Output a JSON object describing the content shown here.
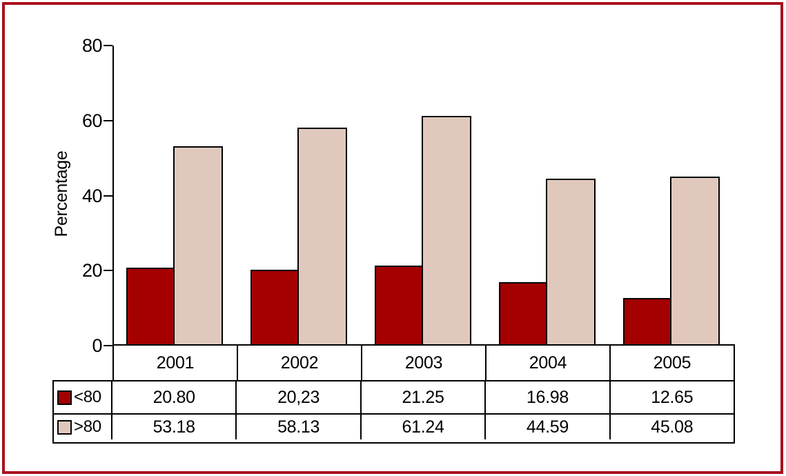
{
  "figure": {
    "border_color": "#A8101E",
    "background": "#FFFFFF"
  },
  "chart_data": {
    "type": "bar",
    "title": "",
    "xlabel": "",
    "ylabel": "Percentage",
    "ylim": [
      0,
      80
    ],
    "yticks": [
      0,
      20,
      40,
      60,
      80
    ],
    "grid": false,
    "legend_position": "table-rows-left",
    "categories": [
      "2001",
      "2002",
      "2003",
      "2004",
      "2005"
    ],
    "series": [
      {
        "name": "<80",
        "color": "#A40000",
        "values": [
          20.8,
          20.23,
          21.25,
          16.98,
          12.65
        ],
        "values_display": [
          "20.80",
          "20,23",
          "21.25",
          "16.98",
          "12.65"
        ]
      },
      {
        "name": ">80",
        "color": "#E0C9BC",
        "values": [
          53.18,
          58.13,
          61.24,
          44.59,
          45.08
        ],
        "values_display": [
          "53.18",
          "58.13",
          "61.24",
          "44.59",
          "45.08"
        ]
      }
    ]
  }
}
